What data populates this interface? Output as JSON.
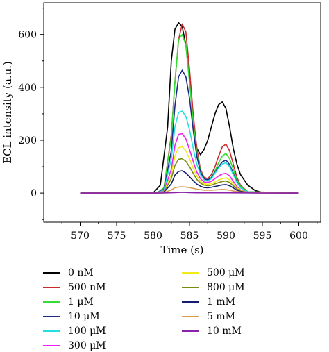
{
  "chart_data": {
    "type": "line",
    "title": "",
    "xlabel": "Time (s)",
    "ylabel": "ECL intensity (a.u.)",
    "xlim": [
      565,
      603
    ],
    "ylim": [
      -110,
      720
    ],
    "xticks": [
      570,
      575,
      580,
      585,
      590,
      595,
      600
    ],
    "yticks": [
      0,
      200,
      400,
      600
    ],
    "legend_position": "below",
    "series": [
      {
        "name": "0 nM",
        "color": "#000000",
        "x": [
          570,
          580,
          581,
          582,
          582.5,
          583,
          583.5,
          584,
          584.5,
          585,
          585.5,
          586,
          586.5,
          587,
          587.5,
          588,
          588.5,
          589,
          589.5,
          590,
          590.5,
          591,
          591.5,
          592,
          593,
          594,
          595,
          600
        ],
        "y": [
          0,
          0,
          30,
          250,
          500,
          620,
          645,
          630,
          560,
          430,
          280,
          170,
          145,
          165,
          200,
          250,
          300,
          335,
          345,
          320,
          250,
          170,
          110,
          70,
          30,
          10,
          2,
          0
        ]
      },
      {
        "name": "500 nM",
        "color": "#cc2a2a",
        "x": [
          570,
          580.5,
          581.5,
          582.5,
          583,
          583.5,
          584,
          584.5,
          585,
          585.5,
          586,
          586.5,
          587,
          587.5,
          588,
          588.5,
          589,
          589.5,
          590,
          590.5,
          591,
          591.5,
          592,
          593,
          600
        ],
        "y": [
          0,
          0,
          20,
          220,
          420,
          580,
          640,
          610,
          470,
          300,
          170,
          90,
          60,
          55,
          70,
          100,
          140,
          175,
          185,
          160,
          110,
          60,
          30,
          5,
          0
        ]
      },
      {
        "name": "1 μM",
        "color": "#33dd33",
        "x": [
          570,
          580.5,
          581.5,
          582.5,
          583,
          583.5,
          584,
          584.5,
          585,
          585.5,
          586,
          586.5,
          587,
          587.5,
          588,
          588.5,
          589,
          589.5,
          590,
          590.5,
          591,
          591.5,
          592,
          593,
          600
        ],
        "y": [
          0,
          0,
          20,
          210,
          420,
          580,
          600,
          560,
          420,
          270,
          150,
          85,
          55,
          50,
          60,
          85,
          115,
          140,
          150,
          130,
          90,
          50,
          25,
          5,
          0
        ]
      },
      {
        "name": "10 μM",
        "color": "#1c2a8a",
        "x": [
          570,
          580.5,
          581.5,
          582.5,
          583,
          583.5,
          584,
          584.5,
          585,
          585.5,
          586,
          586.5,
          587,
          587.5,
          588,
          588.5,
          589,
          589.5,
          590,
          590.5,
          591,
          591.5,
          592,
          593,
          600
        ],
        "y": [
          0,
          0,
          15,
          160,
          330,
          440,
          465,
          440,
          360,
          240,
          140,
          80,
          55,
          50,
          58,
          78,
          100,
          118,
          125,
          108,
          75,
          42,
          20,
          4,
          0
        ]
      },
      {
        "name": "100 μM",
        "color": "#22e0e0",
        "x": [
          570,
          580.5,
          581.5,
          582.5,
          583,
          583.5,
          584,
          584.5,
          585,
          585.5,
          586,
          586.5,
          587,
          587.5,
          588,
          588.5,
          589,
          589.5,
          590,
          590.5,
          591,
          591.5,
          592,
          593,
          600
        ],
        "y": [
          0,
          0,
          12,
          130,
          250,
          305,
          310,
          290,
          240,
          170,
          110,
          70,
          50,
          45,
          55,
          75,
          95,
          110,
          115,
          100,
          70,
          40,
          20,
          4,
          0
        ]
      },
      {
        "name": "300 μM",
        "color": "#ee22ee",
        "x": [
          570,
          580.5,
          581.5,
          582.5,
          583,
          583.5,
          584,
          584.5,
          585,
          585.5,
          586,
          586.5,
          587,
          587.5,
          588,
          588.5,
          589,
          589.5,
          590,
          590.5,
          591,
          591.5,
          592,
          593,
          600
        ],
        "y": [
          0,
          0,
          8,
          90,
          180,
          222,
          225,
          205,
          165,
          120,
          80,
          55,
          42,
          40,
          45,
          55,
          65,
          72,
          75,
          65,
          45,
          25,
          12,
          3,
          0
        ]
      },
      {
        "name": "500 μM",
        "color": "#f2ea1a",
        "x": [
          570,
          580.5,
          581.5,
          582.5,
          583,
          583.5,
          584,
          584.5,
          585,
          585.5,
          586,
          586.5,
          587,
          587.5,
          588,
          588.5,
          589,
          589.5,
          590,
          590.5,
          591,
          591.5,
          592,
          593,
          600
        ],
        "y": [
          0,
          0,
          6,
          70,
          140,
          172,
          175,
          160,
          130,
          95,
          65,
          45,
          35,
          33,
          36,
          42,
          50,
          55,
          58,
          50,
          35,
          20,
          10,
          2,
          0
        ]
      },
      {
        "name": "800 μM",
        "color": "#7a8a10",
        "x": [
          570,
          580.5,
          581.5,
          582.5,
          583,
          583.5,
          584,
          584.5,
          585,
          585.5,
          586,
          586.5,
          587,
          587.5,
          588,
          588.5,
          589,
          589.5,
          590,
          590.5,
          591,
          591.5,
          592,
          593,
          600
        ],
        "y": [
          0,
          0,
          5,
          55,
          105,
          128,
          130,
          120,
          100,
          75,
          52,
          38,
          30,
          28,
          30,
          35,
          40,
          44,
          46,
          40,
          28,
          16,
          8,
          2,
          0
        ]
      },
      {
        "name": "1 mM",
        "color": "#141c70",
        "x": [
          570,
          580.5,
          581.5,
          582.5,
          583,
          583.5,
          584,
          584.5,
          585,
          585.5,
          586,
          586.5,
          587,
          587.5,
          588,
          588.5,
          589,
          589.5,
          590,
          590.5,
          591,
          591.5,
          592,
          593,
          600
        ],
        "y": [
          0,
          0,
          4,
          35,
          68,
          82,
          84,
          76,
          62,
          47,
          34,
          26,
          21,
          20,
          22,
          25,
          28,
          31,
          32,
          28,
          20,
          11,
          6,
          1,
          0
        ]
      },
      {
        "name": "5 mM",
        "color": "#d99a55",
        "x": [
          570,
          580.5,
          581.5,
          582.5,
          583,
          583.5,
          584,
          584.5,
          585,
          585.5,
          586,
          587,
          588,
          589,
          589.5,
          590,
          590.5,
          591,
          592,
          593,
          600
        ],
        "y": [
          0,
          0,
          2,
          12,
          20,
          23,
          24,
          23,
          21,
          18,
          15,
          11,
          11,
          13,
          14,
          13,
          11,
          8,
          4,
          1,
          0
        ]
      },
      {
        "name": "10 mM",
        "color": "#8a22aa",
        "x": [
          570,
          581,
          583,
          584,
          585,
          586,
          590,
          595,
          600
        ],
        "y": [
          0,
          0,
          2,
          3,
          2,
          1,
          1,
          0,
          0
        ]
      }
    ]
  }
}
